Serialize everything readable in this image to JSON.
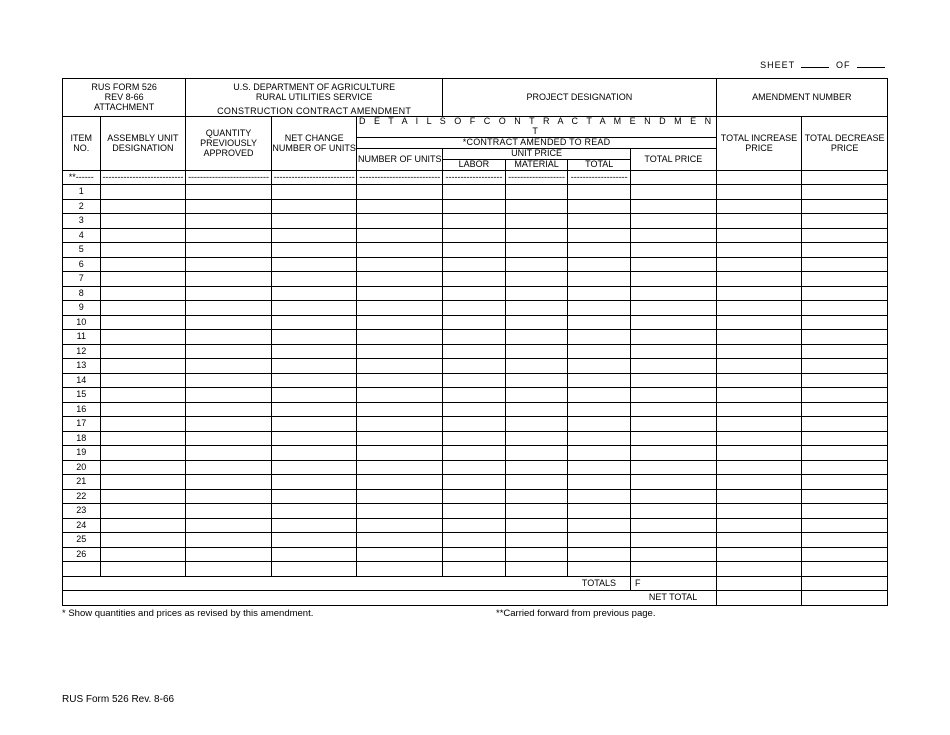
{
  "sheet_label": "SHEET",
  "of_label": "OF",
  "header": {
    "form_no": "RUS FORM 526",
    "rev": "REV 8-66",
    "attachment": "ATTACHMENT",
    "dept": "U.S. DEPARTMENT OF AGRICULTURE",
    "service": "RURAL UTILITIES SERVICE",
    "form_title": "CONSTRUCTION CONTRACT AMENDMENT",
    "project_designation": "PROJECT DESIGNATION",
    "amendment_number": "AMENDMENT NUMBER"
  },
  "table": {
    "details_title": "D E T A I L S  O F  C O N T R A C T  A M E N D M E N T",
    "amend_read": "*CONTRACT AMENDED TO READ",
    "cols": {
      "item_no": "ITEM NO.",
      "assembly": "ASSEMBLY UNIT DESIGNATION",
      "qty_prev": "QUANTITY PREVIOUSLY APPROVED",
      "net_change": "NET CHANGE NUMBER OF UNITS",
      "num_units": "NUMBER OF UNITS",
      "unit_price": "UNIT PRICE",
      "labor": "LABOR",
      "material": "MATERIAL",
      "total": "TOTAL",
      "total_price": "TOTAL PRICE",
      "total_inc": "TOTAL INCREASE PRICE",
      "total_dec": "TOTAL DECREASE PRICE"
    },
    "first_row_label": "**------",
    "dash": "---------------------------",
    "dash_s": "-------------------",
    "row_numbers": [
      "1",
      "2",
      "3",
      "4",
      "5",
      "6",
      "7",
      "8",
      "9",
      "10",
      "11",
      "12",
      "13",
      "14",
      "15",
      "16",
      "17",
      "18",
      "19",
      "20",
      "21",
      "22",
      "23",
      "24",
      "25",
      "26"
    ],
    "totals_label": "TOTALS",
    "totals_marker": "F",
    "net_total_label": "NET TOTAL"
  },
  "footnotes": {
    "left": "* Show quantities and prices as revised by this amendment.",
    "right": "**Carried forward from previous page."
  },
  "footer": "RUS Form 526    Rev. 8-66",
  "style": {
    "border_color": "#000000",
    "bg": "#ffffff",
    "font_size_header": 9,
    "font_size_title": 11,
    "font_size_colhdr": 8.5,
    "row_height": 14.5
  }
}
